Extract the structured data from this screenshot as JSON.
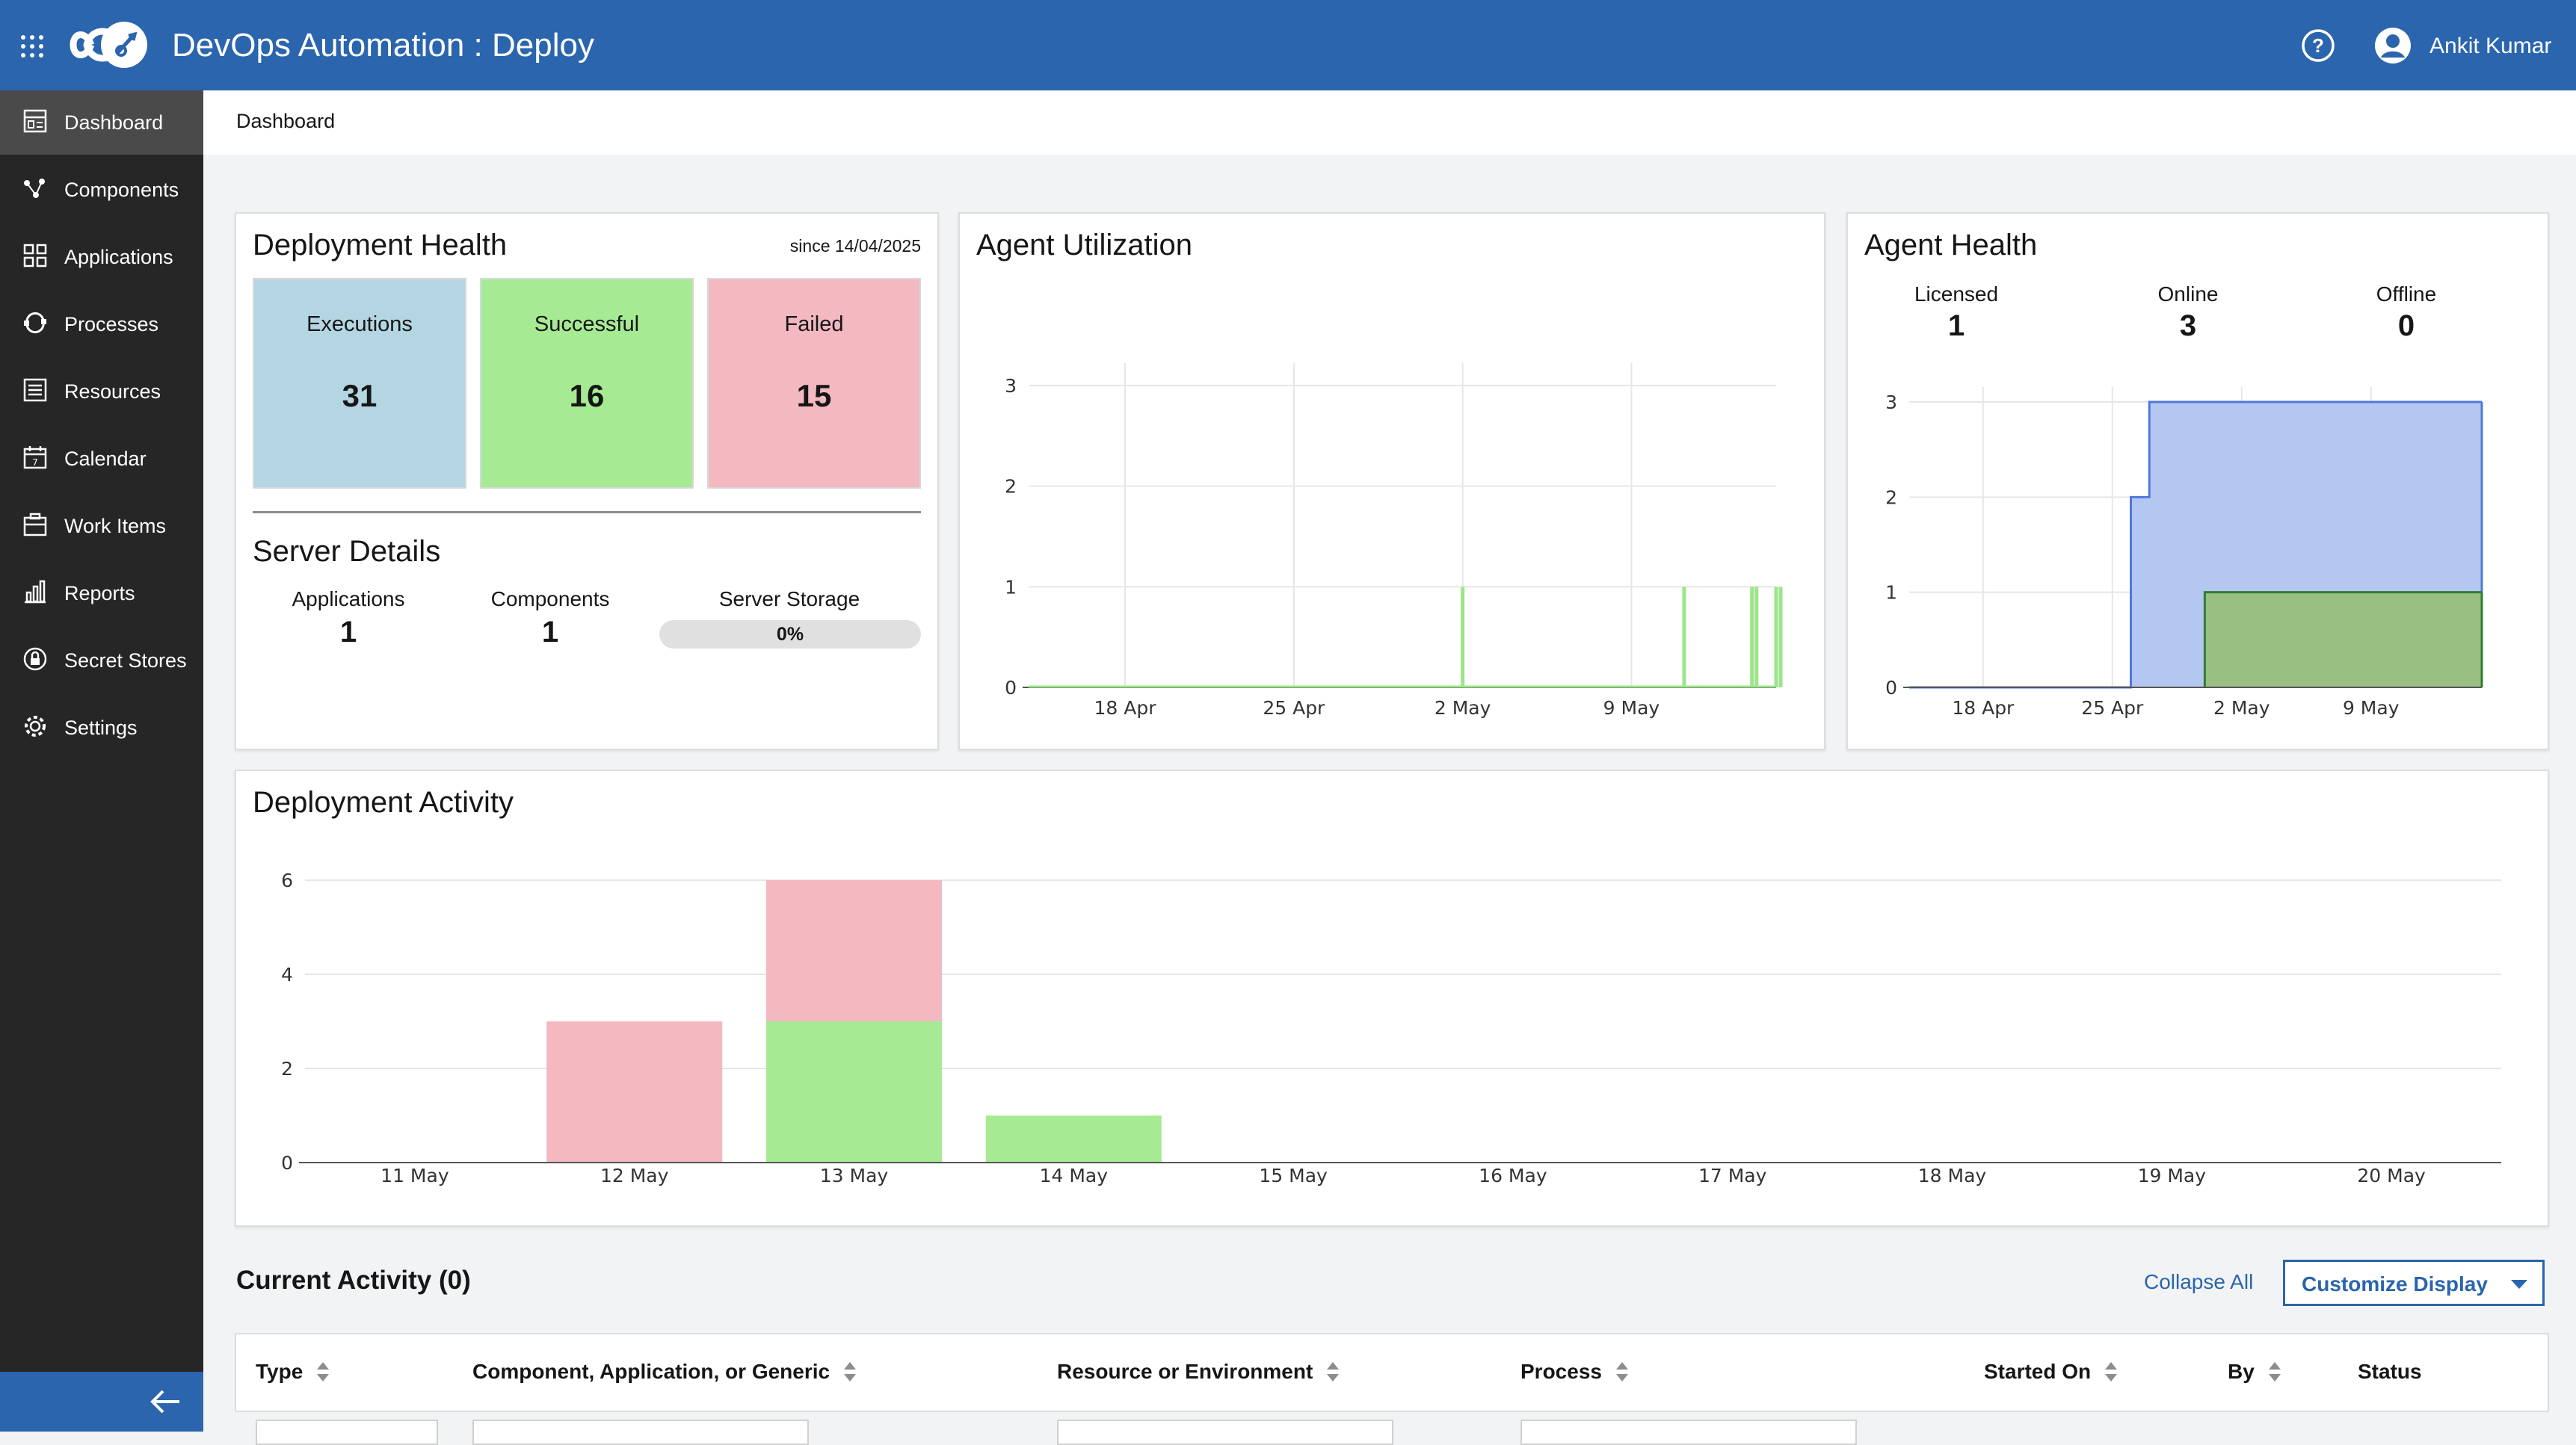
{
  "header": {
    "title": "DevOps Automation : Deploy",
    "user_name": "Ankit Kumar",
    "help_icon": "help-circle-icon",
    "user_icon": "user-avatar-icon",
    "apps_icon": "grid-menu-icon",
    "logo_icon": "infinity-logo-icon"
  },
  "sidebar": {
    "items": [
      {
        "label": "Dashboard",
        "icon": "dashboard-icon",
        "active": true
      },
      {
        "label": "Components",
        "icon": "components-icon"
      },
      {
        "label": "Applications",
        "icon": "applications-icon"
      },
      {
        "label": "Processes",
        "icon": "processes-icon"
      },
      {
        "label": "Resources",
        "icon": "resources-icon"
      },
      {
        "label": "Calendar",
        "icon": "calendar-icon"
      },
      {
        "label": "Work Items",
        "icon": "work-items-icon"
      },
      {
        "label": "Reports",
        "icon": "reports-icon"
      },
      {
        "label": "Secret Stores",
        "icon": "secret-stores-icon"
      },
      {
        "label": "Settings",
        "icon": "settings-icon"
      }
    ],
    "collapse_icon": "arrow-left-icon"
  },
  "breadcrumb": "Dashboard",
  "deployment_health": {
    "title": "Deployment Health",
    "since": "since 14/04/2025",
    "tiles": [
      {
        "label": "Executions",
        "value": "31",
        "color": "#b4d6e3"
      },
      {
        "label": "Successful",
        "value": "16",
        "color": "#a6eb94"
      },
      {
        "label": "Failed",
        "value": "15",
        "color": "#f4b8c1"
      }
    ]
  },
  "server_details": {
    "title": "Server Details",
    "applications_label": "Applications",
    "applications_value": "1",
    "components_label": "Components",
    "components_value": "1",
    "storage_label": "Server Storage",
    "storage_value": "0%",
    "storage_fraction": 0
  },
  "agent_utilization": {
    "title": "Agent Utilization"
  },
  "agent_health": {
    "title": "Agent Health",
    "licensed_label": "Licensed",
    "licensed_value": "1",
    "online_label": "Online",
    "online_value": "3",
    "offline_label": "Offline",
    "offline_value": "0"
  },
  "deployment_activity": {
    "title": "Deployment Activity"
  },
  "chart_data": [
    {
      "type": "line",
      "title": "Agent Utilization",
      "x_range": [
        "2025-04-14",
        "2025-05-15"
      ],
      "x_ticks": [
        "18 Apr",
        "25 Apr",
        "2 May",
        "9 May"
      ],
      "y_ticks": [
        "0",
        "1",
        "2",
        "3"
      ],
      "ylim": [
        0,
        3
      ],
      "grid": true,
      "series": [
        {
          "color": "#9be58a",
          "spikes": [
            "2025-05-02",
            "2025-05-11",
            "2025-05-14",
            "2025-05-14",
            "2025-05-15",
            "2025-05-15"
          ],
          "spike_value": 1
        }
      ]
    },
    {
      "type": "area",
      "title": "Agent Health",
      "x_range": [
        "2025-04-14",
        "2025-05-15"
      ],
      "x_ticks": [
        "18 Apr",
        "25 Apr",
        "2 May",
        "9 May"
      ],
      "y_ticks": [
        "0",
        "1",
        "2",
        "3"
      ],
      "ylim": [
        0,
        3
      ],
      "grid": true,
      "series": [
        {
          "color": "#4f78d9",
          "fill": "#b4c7f0",
          "points": [
            [
              "2025-04-14",
              0
            ],
            [
              "2025-04-26",
              0
            ],
            [
              "2025-04-26",
              2
            ],
            [
              "2025-04-27",
              2
            ],
            [
              "2025-04-27",
              3
            ],
            [
              "2025-05-15",
              3
            ]
          ]
        },
        {
          "color": "#2e7d32",
          "fill": "#99bf82",
          "points": [
            [
              "2025-04-30",
              0
            ],
            [
              "2025-04-30",
              1
            ],
            [
              "2025-05-15",
              1
            ]
          ]
        }
      ]
    },
    {
      "type": "bar",
      "title": "Deployment Activity",
      "categories": [
        "11 May",
        "12 May",
        "13 May",
        "14 May",
        "15 May",
        "16 May",
        "17 May",
        "18 May",
        "19 May",
        "20 May"
      ],
      "y_ticks": [
        "0",
        "2",
        "4",
        "6"
      ],
      "ylim": [
        0,
        6
      ],
      "stacked": true,
      "series": [
        {
          "color": "#a6eb94",
          "values": [
            0,
            0,
            3,
            1,
            0,
            0,
            0,
            0,
            0,
            0
          ]
        },
        {
          "color": "#f4b8c1",
          "values": [
            0,
            3,
            3,
            0,
            0,
            0,
            0,
            0,
            0,
            0
          ]
        }
      ]
    }
  ],
  "current_activity": {
    "title": "Current Activity (0)",
    "collapse_all": "Collapse All",
    "customize_display": "Customize Display",
    "columns": [
      "Type",
      "Component, Application, or Generic",
      "Resource or Environment",
      "Process",
      "Started On",
      "By",
      "Status"
    ]
  }
}
